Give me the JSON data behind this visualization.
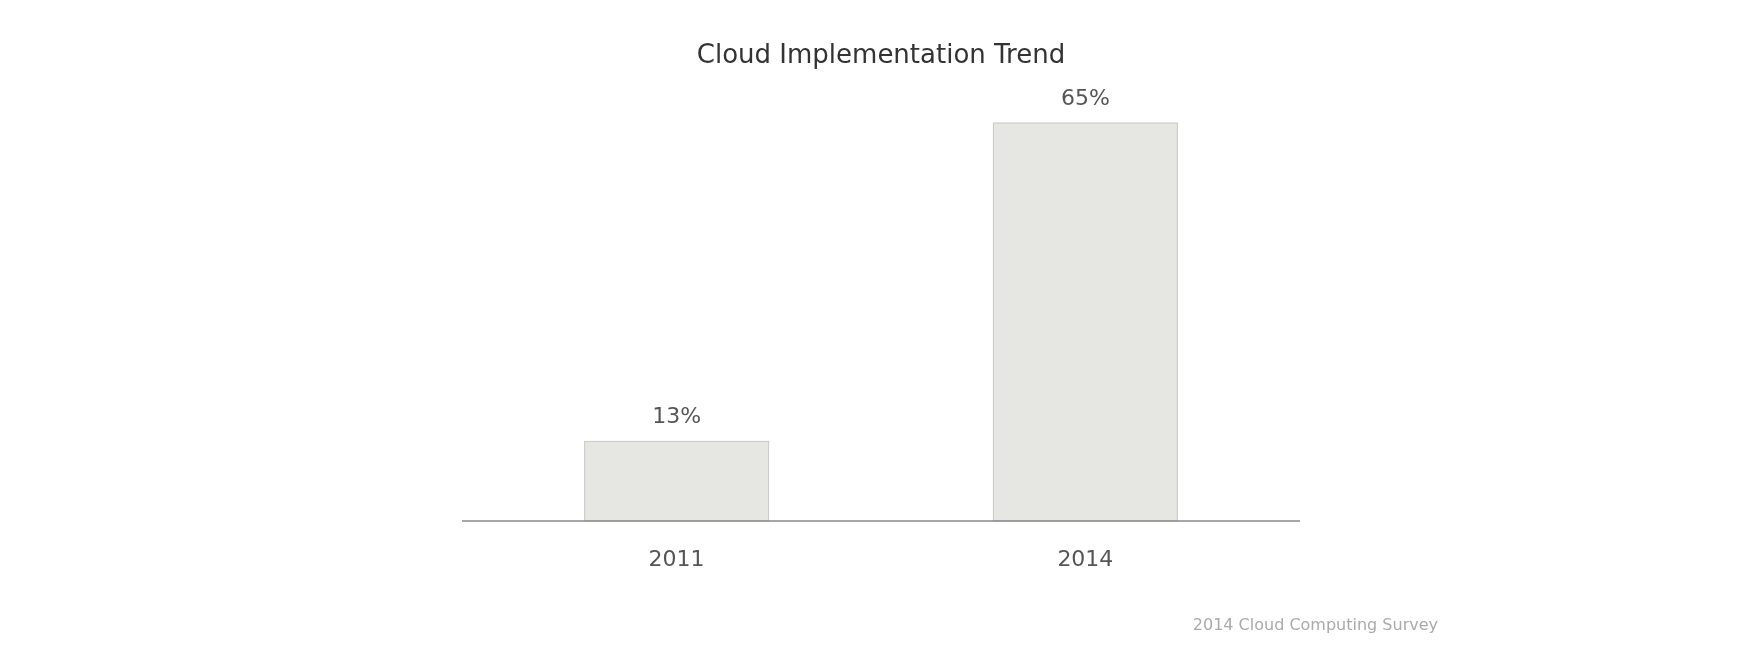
{
  "chart_data": {
    "type": "bar",
    "title": "Cloud Implementation Trend",
    "categories": [
      "2011",
      "2014"
    ],
    "values": [
      13,
      65
    ],
    "color": "#e6e6e2",
    "value_labels": [
      "13%",
      "65%"
    ],
    "annotations": [
      "2014 Cloud Computing Survey"
    ]
  }
}
